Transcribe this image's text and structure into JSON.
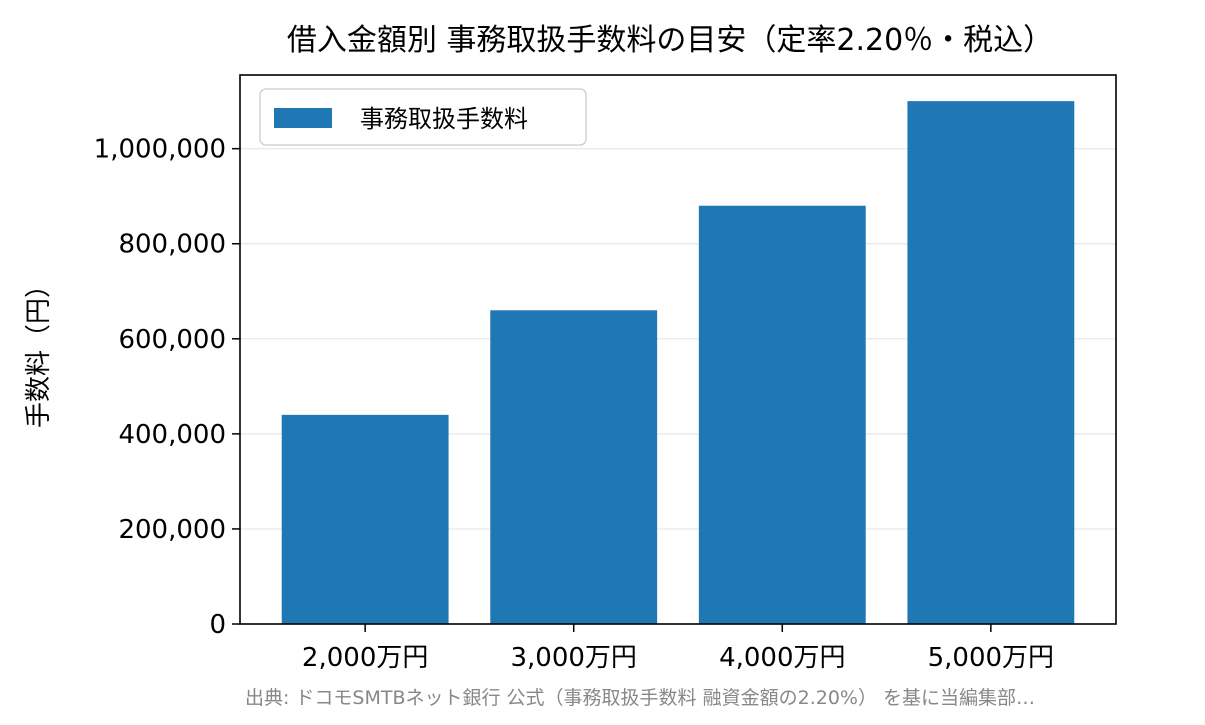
{
  "chart_data": {
    "type": "bar",
    "title": "借入金額別 事務取扱手数料の目安（定率2.20％・税込）",
    "xlabel": "",
    "ylabel": "手数料（円）",
    "categories": [
      "2,000万円",
      "3,000万円",
      "4,000万円",
      "5,000万円"
    ],
    "series": [
      {
        "name": "事務取扱手数料",
        "values": [
          440000,
          660000,
          880000,
          1100000
        ],
        "color": "#1f77b4"
      }
    ],
    "ylim": [
      0,
      1155000
    ],
    "yticks": [
      0,
      200000,
      400000,
      600000,
      800000,
      1000000
    ],
    "ytick_labels": [
      "0",
      "200,000",
      "400,000",
      "600,000",
      "800,000",
      "1,000,000"
    ],
    "grid": "horizontal",
    "legend": "top-left"
  },
  "source_note": "出典: ドコモSMTBネット銀行 公式（事務取扱手数料 融資金額の2.20%） を基に当編集部…"
}
